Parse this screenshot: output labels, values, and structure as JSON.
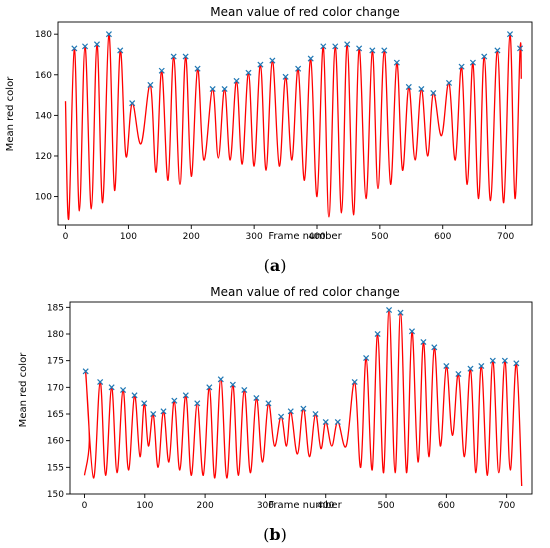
{
  "chart_data": [
    {
      "type": "line",
      "panel_label": "(a)",
      "panel_letter": "a",
      "title": "Mean value of red color change",
      "xlabel": "Frame number",
      "ylabel": "Mean red color",
      "xlim": [
        -12,
        742
      ],
      "ylim": [
        86,
        186
      ],
      "xticks": [
        0,
        100,
        200,
        300,
        400,
        500,
        600,
        700
      ],
      "yticks": [
        100,
        120,
        140,
        160,
        180
      ],
      "grid": false,
      "line_color": "#ff0000",
      "marker_color": "#1f77b4",
      "start": {
        "x": 0,
        "y": 147
      },
      "end": {
        "x": 725,
        "y": 158
      },
      "peaks": [
        {
          "x": 14,
          "y": 173
        },
        {
          "x": 31,
          "y": 174
        },
        {
          "x": 50,
          "y": 175
        },
        {
          "x": 69,
          "y": 180
        },
        {
          "x": 87,
          "y": 172
        },
        {
          "x": 106,
          "y": 146
        },
        {
          "x": 135,
          "y": 155
        },
        {
          "x": 153,
          "y": 162
        },
        {
          "x": 172,
          "y": 169
        },
        {
          "x": 191,
          "y": 169
        },
        {
          "x": 210,
          "y": 163
        },
        {
          "x": 234,
          "y": 153
        },
        {
          "x": 253,
          "y": 153
        },
        {
          "x": 272,
          "y": 157
        },
        {
          "x": 291,
          "y": 161
        },
        {
          "x": 310,
          "y": 165
        },
        {
          "x": 329,
          "y": 167
        },
        {
          "x": 350,
          "y": 159
        },
        {
          "x": 370,
          "y": 163
        },
        {
          "x": 390,
          "y": 168
        },
        {
          "x": 410,
          "y": 174
        },
        {
          "x": 429,
          "y": 174
        },
        {
          "x": 448,
          "y": 175
        },
        {
          "x": 467,
          "y": 173
        },
        {
          "x": 488,
          "y": 172
        },
        {
          "x": 507,
          "y": 172
        },
        {
          "x": 527,
          "y": 166
        },
        {
          "x": 546,
          "y": 154
        },
        {
          "x": 566,
          "y": 153
        },
        {
          "x": 585,
          "y": 151
        },
        {
          "x": 610,
          "y": 156
        },
        {
          "x": 630,
          "y": 164
        },
        {
          "x": 648,
          "y": 166
        },
        {
          "x": 666,
          "y": 169
        },
        {
          "x": 687,
          "y": 172
        },
        {
          "x": 707,
          "y": 180
        },
        {
          "x": 723,
          "y": 173
        }
      ],
      "troughs": [
        {
          "x": 5,
          "y": 89
        },
        {
          "x": 22,
          "y": 93
        },
        {
          "x": 41,
          "y": 94
        },
        {
          "x": 59,
          "y": 97
        },
        {
          "x": 78,
          "y": 103
        },
        {
          "x": 96,
          "y": 120
        },
        {
          "x": 120,
          "y": 126
        },
        {
          "x": 144,
          "y": 112
        },
        {
          "x": 163,
          "y": 108
        },
        {
          "x": 182,
          "y": 106
        },
        {
          "x": 200,
          "y": 110
        },
        {
          "x": 220,
          "y": 118
        },
        {
          "x": 243,
          "y": 119
        },
        {
          "x": 262,
          "y": 118
        },
        {
          "x": 281,
          "y": 116
        },
        {
          "x": 300,
          "y": 115
        },
        {
          "x": 319,
          "y": 113
        },
        {
          "x": 340,
          "y": 115
        },
        {
          "x": 360,
          "y": 118
        },
        {
          "x": 380,
          "y": 108
        },
        {
          "x": 400,
          "y": 100
        },
        {
          "x": 419,
          "y": 90
        },
        {
          "x": 439,
          "y": 92
        },
        {
          "x": 458,
          "y": 91
        },
        {
          "x": 478,
          "y": 99
        },
        {
          "x": 497,
          "y": 104
        },
        {
          "x": 517,
          "y": 106
        },
        {
          "x": 536,
          "y": 113
        },
        {
          "x": 556,
          "y": 118
        },
        {
          "x": 576,
          "y": 120
        },
        {
          "x": 598,
          "y": 130
        },
        {
          "x": 620,
          "y": 118
        },
        {
          "x": 639,
          "y": 106
        },
        {
          "x": 657,
          "y": 99
        },
        {
          "x": 676,
          "y": 98
        },
        {
          "x": 697,
          "y": 97
        },
        {
          "x": 715,
          "y": 99
        }
      ]
    },
    {
      "type": "line",
      "panel_label": "(b)",
      "panel_letter": "b",
      "title": "Mean value of red color change",
      "xlabel": "Frame number",
      "ylabel": "Mean red color",
      "xlim": [
        -24,
        742
      ],
      "ylim": [
        150,
        186
      ],
      "xticks": [
        0,
        100,
        200,
        300,
        400,
        500,
        600,
        700
      ],
      "yticks": [
        150,
        155,
        160,
        165,
        170,
        175,
        180,
        185
      ],
      "grid": false,
      "line_color": "#ff0000",
      "marker_color": "#1f77b4",
      "start": {
        "x": 0,
        "y": 153.5
      },
      "end": {
        "x": 725,
        "y": 151.5
      },
      "peaks": [
        {
          "x": 2,
          "y": 173
        },
        {
          "x": 26,
          "y": 171
        },
        {
          "x": 45,
          "y": 170
        },
        {
          "x": 64,
          "y": 169.5
        },
        {
          "x": 83,
          "y": 168.5
        },
        {
          "x": 99,
          "y": 167
        },
        {
          "x": 114,
          "y": 165
        },
        {
          "x": 131,
          "y": 165.5
        },
        {
          "x": 149,
          "y": 167.5
        },
        {
          "x": 168,
          "y": 168.5
        },
        {
          "x": 187,
          "y": 167
        },
        {
          "x": 207,
          "y": 170
        },
        {
          "x": 226,
          "y": 171.5
        },
        {
          "x": 246,
          "y": 170.5
        },
        {
          "x": 265,
          "y": 169.5
        },
        {
          "x": 285,
          "y": 168
        },
        {
          "x": 305,
          "y": 167
        },
        {
          "x": 326,
          "y": 164.5
        },
        {
          "x": 342,
          "y": 165.5
        },
        {
          "x": 363,
          "y": 166
        },
        {
          "x": 383,
          "y": 165
        },
        {
          "x": 400,
          "y": 163.5
        },
        {
          "x": 420,
          "y": 163.5
        },
        {
          "x": 448,
          "y": 171
        },
        {
          "x": 467,
          "y": 175.5
        },
        {
          "x": 486,
          "y": 180
        },
        {
          "x": 505,
          "y": 184.5
        },
        {
          "x": 524,
          "y": 184
        },
        {
          "x": 543,
          "y": 180.5
        },
        {
          "x": 562,
          "y": 178.5
        },
        {
          "x": 580,
          "y": 177.5
        },
        {
          "x": 600,
          "y": 174
        },
        {
          "x": 620,
          "y": 172.5
        },
        {
          "x": 640,
          "y": 173.5
        },
        {
          "x": 658,
          "y": 174
        },
        {
          "x": 677,
          "y": 175
        },
        {
          "x": 697,
          "y": 175
        },
        {
          "x": 716,
          "y": 174.5
        }
      ],
      "troughs": [
        {
          "x": 8,
          "y": 160
        },
        {
          "x": 15,
          "y": 153
        },
        {
          "x": 35,
          "y": 153.5
        },
        {
          "x": 54,
          "y": 154
        },
        {
          "x": 73,
          "y": 154.5
        },
        {
          "x": 92,
          "y": 157
        },
        {
          "x": 106,
          "y": 159
        },
        {
          "x": 122,
          "y": 155
        },
        {
          "x": 140,
          "y": 156
        },
        {
          "x": 158,
          "y": 154.5
        },
        {
          "x": 177,
          "y": 153.5
        },
        {
          "x": 197,
          "y": 153.5
        },
        {
          "x": 216,
          "y": 153
        },
        {
          "x": 236,
          "y": 153
        },
        {
          "x": 255,
          "y": 153.5
        },
        {
          "x": 275,
          "y": 154
        },
        {
          "x": 295,
          "y": 156
        },
        {
          "x": 315,
          "y": 159
        },
        {
          "x": 335,
          "y": 159
        },
        {
          "x": 353,
          "y": 157.5
        },
        {
          "x": 373,
          "y": 157
        },
        {
          "x": 392,
          "y": 158.5
        },
        {
          "x": 410,
          "y": 159
        },
        {
          "x": 434,
          "y": 159
        },
        {
          "x": 458,
          "y": 155
        },
        {
          "x": 477,
          "y": 154.5
        },
        {
          "x": 496,
          "y": 154
        },
        {
          "x": 515,
          "y": 154
        },
        {
          "x": 534,
          "y": 154
        },
        {
          "x": 553,
          "y": 156
        },
        {
          "x": 571,
          "y": 157
        },
        {
          "x": 590,
          "y": 159
        },
        {
          "x": 610,
          "y": 161
        },
        {
          "x": 630,
          "y": 157
        },
        {
          "x": 649,
          "y": 154
        },
        {
          "x": 668,
          "y": 153.5
        },
        {
          "x": 687,
          "y": 154
        },
        {
          "x": 706,
          "y": 154.5
        }
      ]
    }
  ]
}
